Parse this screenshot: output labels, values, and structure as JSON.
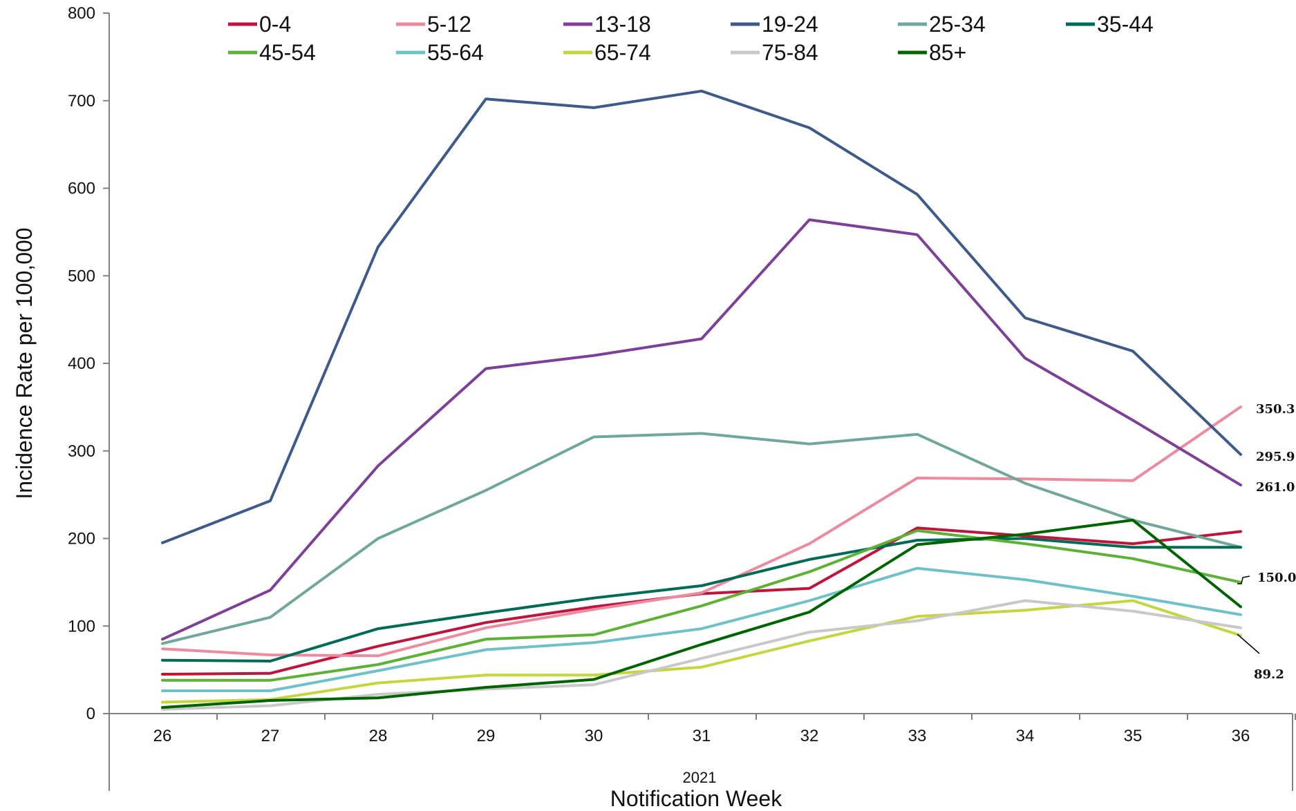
{
  "chart_data": {
    "type": "line",
    "title": "",
    "xlabel": "Notification Week",
    "xlabel_group": "2021",
    "ylabel": "Incidence Rate per 100,000",
    "ylim": [
      0,
      800
    ],
    "yticks": [
      0,
      100,
      200,
      300,
      400,
      500,
      600,
      700,
      800
    ],
    "x": [
      26,
      27,
      28,
      29,
      30,
      31,
      32,
      33,
      34,
      35,
      36
    ],
    "grid": false,
    "legend_position": "top",
    "series": [
      {
        "name": "0-4",
        "color": "#C0143C",
        "values": [
          45,
          46,
          77,
          104,
          122,
          137,
          143,
          212,
          203,
          194,
          208
        ]
      },
      {
        "name": "5-12",
        "color": "#EE8A9E",
        "values": [
          74,
          67,
          66,
          98,
          119,
          138,
          194,
          269,
          268,
          266,
          350.3
        ]
      },
      {
        "name": "13-18",
        "color": "#7E3F98",
        "values": [
          85,
          141,
          283,
          394,
          409,
          428,
          564,
          547,
          406,
          335,
          261.0
        ]
      },
      {
        "name": "19-24",
        "color": "#3D5A8A",
        "values": [
          195,
          243,
          533,
          702,
          692,
          711,
          669,
          593,
          452,
          414,
          295.9
        ]
      },
      {
        "name": "25-34",
        "color": "#6FA89A",
        "values": [
          80,
          110,
          200,
          255,
          316,
          320,
          308,
          319,
          263,
          221,
          190
        ]
      },
      {
        "name": "35-44",
        "color": "#006B57",
        "values": [
          61,
          60,
          97,
          115,
          132,
          146,
          176,
          198,
          200,
          190,
          190
        ]
      },
      {
        "name": "45-54",
        "color": "#5DB134",
        "values": [
          38,
          38,
          56,
          85,
          90,
          123,
          162,
          209,
          194,
          177,
          150.0
        ]
      },
      {
        "name": "55-64",
        "color": "#6DC1C9",
        "values": [
          26,
          26,
          49,
          73,
          81,
          97,
          129,
          166,
          153,
          134,
          113
        ]
      },
      {
        "name": "65-74",
        "color": "#C3D63B",
        "values": [
          13,
          16,
          35,
          44,
          44,
          53,
          83,
          111,
          118,
          129,
          89.2
        ]
      },
      {
        "name": "75-84",
        "color": "#C8C8C8",
        "values": [
          5,
          9,
          22,
          28,
          33,
          63,
          93,
          106,
          129,
          117,
          98
        ]
      },
      {
        "name": "85+",
        "color": "#006400",
        "values": [
          7,
          15,
          18,
          30,
          39,
          79,
          116,
          193,
          205,
          221,
          122
        ]
      }
    ],
    "data_labels": [
      {
        "series": "5-12",
        "text": "350.3"
      },
      {
        "series": "19-24",
        "text": "295.9"
      },
      {
        "series": "13-18",
        "text": "261.0"
      },
      {
        "series": "45-54",
        "text": "150.0"
      },
      {
        "series": "65-74",
        "text": "89.2"
      }
    ]
  }
}
